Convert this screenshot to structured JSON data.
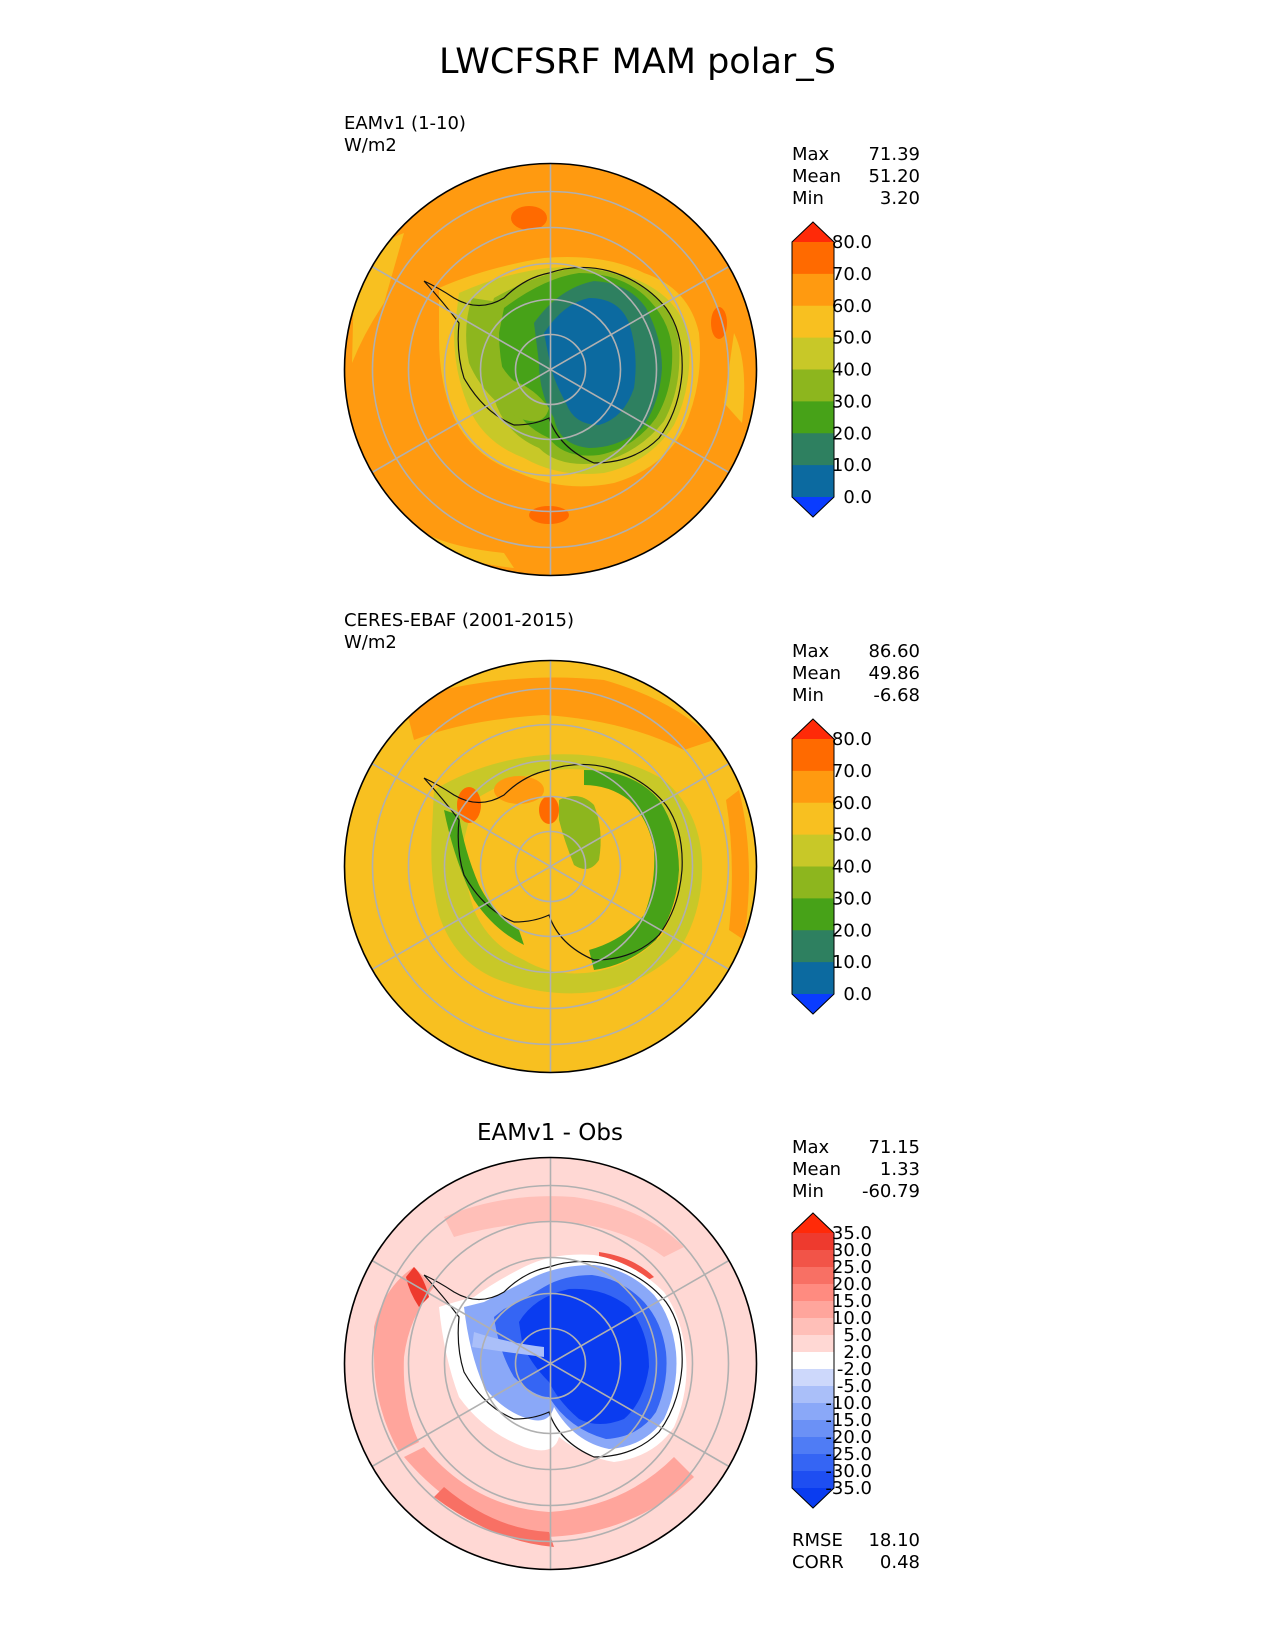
{
  "title": "LWCFSRF MAM polar_S",
  "panels": [
    {
      "id": "test",
      "label": "EAMv1 (1-10)",
      "units": "W/m2",
      "stats": [
        {
          "name": "Max",
          "value": "71.39"
        },
        {
          "name": "Mean",
          "value": "51.20"
        },
        {
          "name": "Min",
          "value": "3.20"
        }
      ],
      "colorbar": {
        "labels": [
          "0.0",
          "10.0",
          "20.0",
          "30.0",
          "40.0",
          "50.0",
          "60.0",
          "70.0",
          "80.0"
        ],
        "colors": [
          "#0a3cff",
          "#0c6aa0",
          "#2e8060",
          "#47a218",
          "#8db61e",
          "#c8c828",
          "#f8c020",
          "#ff9a10",
          "#ff6a00",
          "#ff2a08"
        ]
      }
    },
    {
      "id": "reference",
      "label": "CERES-EBAF (2001-2015)",
      "units": "W/m2",
      "stats": [
        {
          "name": "Max",
          "value": "86.60"
        },
        {
          "name": "Mean",
          "value": "49.86"
        },
        {
          "name": "Min",
          "value": "-6.68"
        }
      ],
      "colorbar": {
        "labels": [
          "0.0",
          "10.0",
          "20.0",
          "30.0",
          "40.0",
          "50.0",
          "60.0",
          "70.0",
          "80.0"
        ],
        "colors": [
          "#0a3cff",
          "#0c6aa0",
          "#2e8060",
          "#47a218",
          "#8db61e",
          "#c8c828",
          "#f8c020",
          "#ff9a10",
          "#ff6a00",
          "#ff2a08"
        ]
      }
    },
    {
      "id": "diff",
      "title": "EAMv1 - Obs",
      "stats": [
        {
          "name": "Max",
          "value": "71.15"
        },
        {
          "name": "Mean",
          "value": "1.33"
        },
        {
          "name": "Min",
          "value": "-60.79"
        }
      ],
      "colorbar": {
        "labels": [
          "-35.0",
          "-30.0",
          "-25.0",
          "-20.0",
          "-15.0",
          "-10.0",
          "-5.0",
          "-2.0",
          "2.0",
          "5.0",
          "10.0",
          "15.0",
          "20.0",
          "25.0",
          "30.0",
          "35.0"
        ],
        "colors": [
          "#0a3cf0",
          "#1e4ef2",
          "#3565f4",
          "#4f7cf5",
          "#6b91f6",
          "#8aa8f8",
          "#aabff9",
          "#cdd8fb",
          "#ffffff",
          "#ffd8d4",
          "#ffbfb8",
          "#ffa59c",
          "#ff8b80",
          "#f87064",
          "#f25448",
          "#ee3a2e",
          "#ff2a08"
        ]
      },
      "metrics": [
        {
          "name": "RMSE",
          "value": "18.10"
        },
        {
          "name": "CORR",
          "value": "0.48"
        }
      ]
    }
  ],
  "chart_data": [
    {
      "type": "heatmap",
      "projection": "south polar stereographic",
      "title": "EAMv1 (1-10)",
      "units": "W/m2",
      "levels": [
        0,
        10,
        20,
        30,
        40,
        50,
        60,
        70,
        80
      ],
      "max": 71.39,
      "mean": 51.2,
      "min": 3.2
    },
    {
      "type": "heatmap",
      "projection": "south polar stereographic",
      "title": "CERES-EBAF (2001-2015)",
      "units": "W/m2",
      "levels": [
        0,
        10,
        20,
        30,
        40,
        50,
        60,
        70,
        80
      ],
      "max": 86.6,
      "mean": 49.86,
      "min": -6.68
    },
    {
      "type": "heatmap",
      "projection": "south polar stereographic",
      "title": "EAMv1 - Obs",
      "levels": [
        -35,
        -30,
        -25,
        -20,
        -15,
        -10,
        -5,
        -2,
        2,
        5,
        10,
        15,
        20,
        25,
        30,
        35
      ],
      "max": 71.15,
      "mean": 1.33,
      "min": -60.79,
      "rmse": 18.1,
      "corr": 0.48
    }
  ]
}
